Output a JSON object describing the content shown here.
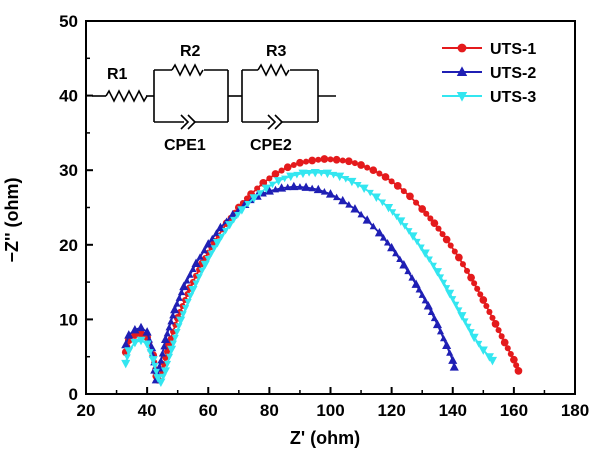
{
  "chart_data": {
    "type": "line",
    "xlabel": "Z' (ohm)",
    "ylabel": "−Z'' (ohm)",
    "xlim": [
      20,
      180
    ],
    "ylim": [
      0,
      50
    ],
    "xticks": [
      "20",
      "40",
      "60",
      "80",
      "100",
      "120",
      "140",
      "160",
      "180"
    ],
    "yticks": [
      "0",
      "10",
      "20",
      "30",
      "40",
      "50"
    ],
    "legend_position": "top-right",
    "series": [
      {
        "name": "UTS-1",
        "color": "#e41a1c",
        "marker": "circle",
        "points": [
          [
            33,
            5.6
          ],
          [
            34,
            7.2
          ],
          [
            36,
            7.9
          ],
          [
            38,
            8.1
          ],
          [
            40,
            7.6
          ],
          [
            42,
            5.2
          ],
          [
            43,
            2.4
          ],
          [
            43.5,
            1.9
          ],
          [
            45,
            3.2
          ],
          [
            47,
            6.5
          ],
          [
            50,
            10.2
          ],
          [
            54,
            14.2
          ],
          [
            58,
            17.5
          ],
          [
            62,
            20.4
          ],
          [
            66,
            22.9
          ],
          [
            70,
            25.0
          ],
          [
            74,
            26.8
          ],
          [
            78,
            28.3
          ],
          [
            82,
            29.5
          ],
          [
            86,
            30.4
          ],
          [
            90,
            31.0
          ],
          [
            94,
            31.3
          ],
          [
            98,
            31.5
          ],
          [
            102,
            31.4
          ],
          [
            106,
            31.2
          ],
          [
            110,
            30.7
          ],
          [
            114,
            30.0
          ],
          [
            118,
            29.1
          ],
          [
            122,
            27.9
          ],
          [
            126,
            26.5
          ],
          [
            130,
            24.8
          ],
          [
            134,
            22.9
          ],
          [
            138,
            20.7
          ],
          [
            142,
            18.3
          ],
          [
            146,
            15.6
          ],
          [
            150,
            12.6
          ],
          [
            154,
            9.4
          ],
          [
            157,
            6.9
          ],
          [
            160,
            4.6
          ],
          [
            161.5,
            3.1
          ]
        ]
      },
      {
        "name": "UTS-2",
        "color": "#1f1fb4",
        "marker": "triangle-up",
        "points": [
          [
            33,
            6.6
          ],
          [
            34,
            7.9
          ],
          [
            36,
            8.6
          ],
          [
            38,
            8.9
          ],
          [
            40,
            8.3
          ],
          [
            41.5,
            6.2
          ],
          [
            42.5,
            3.2
          ],
          [
            43,
            1.9
          ],
          [
            44,
            3.5
          ],
          [
            46,
            7.3
          ],
          [
            49,
            11.3
          ],
          [
            52,
            14.4
          ],
          [
            56,
            17.5
          ],
          [
            60,
            20.1
          ],
          [
            64,
            22.3
          ],
          [
            68,
            24.0
          ],
          [
            72,
            25.4
          ],
          [
            76,
            26.5
          ],
          [
            80,
            27.2
          ],
          [
            84,
            27.6
          ],
          [
            88,
            27.8
          ],
          [
            92,
            27.7
          ],
          [
            96,
            27.4
          ],
          [
            100,
            26.8
          ],
          [
            104,
            25.9
          ],
          [
            108,
            24.8
          ],
          [
            112,
            23.3
          ],
          [
            116,
            21.6
          ],
          [
            120,
            19.6
          ],
          [
            124,
            17.3
          ],
          [
            128,
            14.7
          ],
          [
            132,
            11.8
          ],
          [
            135,
            9.3
          ],
          [
            138,
            6.5
          ],
          [
            140,
            4.5
          ],
          [
            140.5,
            3.6
          ]
        ]
      },
      {
        "name": "UTS-3",
        "color": "#33e6f0",
        "marker": "triangle-down",
        "points": [
          [
            33,
            4.1
          ],
          [
            34,
            5.8
          ],
          [
            36,
            6.9
          ],
          [
            38,
            7.2
          ],
          [
            40,
            6.7
          ],
          [
            42,
            4.6
          ],
          [
            43.5,
            2.2
          ],
          [
            44.5,
            1.6
          ],
          [
            46,
            3.1
          ],
          [
            48,
            6.0
          ],
          [
            51,
            9.9
          ],
          [
            55,
            14.0
          ],
          [
            59,
            17.4
          ],
          [
            63,
            20.3
          ],
          [
            67,
            22.7
          ],
          [
            71,
            24.7
          ],
          [
            75,
            26.3
          ],
          [
            79,
            27.6
          ],
          [
            83,
            28.6
          ],
          [
            87,
            29.2
          ],
          [
            91,
            29.6
          ],
          [
            95,
            29.7
          ],
          [
            99,
            29.6
          ],
          [
            103,
            29.2
          ],
          [
            107,
            28.5
          ],
          [
            111,
            27.6
          ],
          [
            115,
            26.4
          ],
          [
            119,
            25.0
          ],
          [
            123,
            23.2
          ],
          [
            127,
            21.2
          ],
          [
            131,
            18.9
          ],
          [
            135,
            16.4
          ],
          [
            139,
            13.5
          ],
          [
            143,
            10.5
          ],
          [
            147,
            7.6
          ],
          [
            150,
            5.9
          ],
          [
            152,
            5.0
          ],
          [
            153,
            4.5
          ]
        ]
      }
    ],
    "circuit": {
      "labels": [
        "R1",
        "R2",
        "R3",
        "CPE1",
        "CPE2"
      ]
    }
  }
}
